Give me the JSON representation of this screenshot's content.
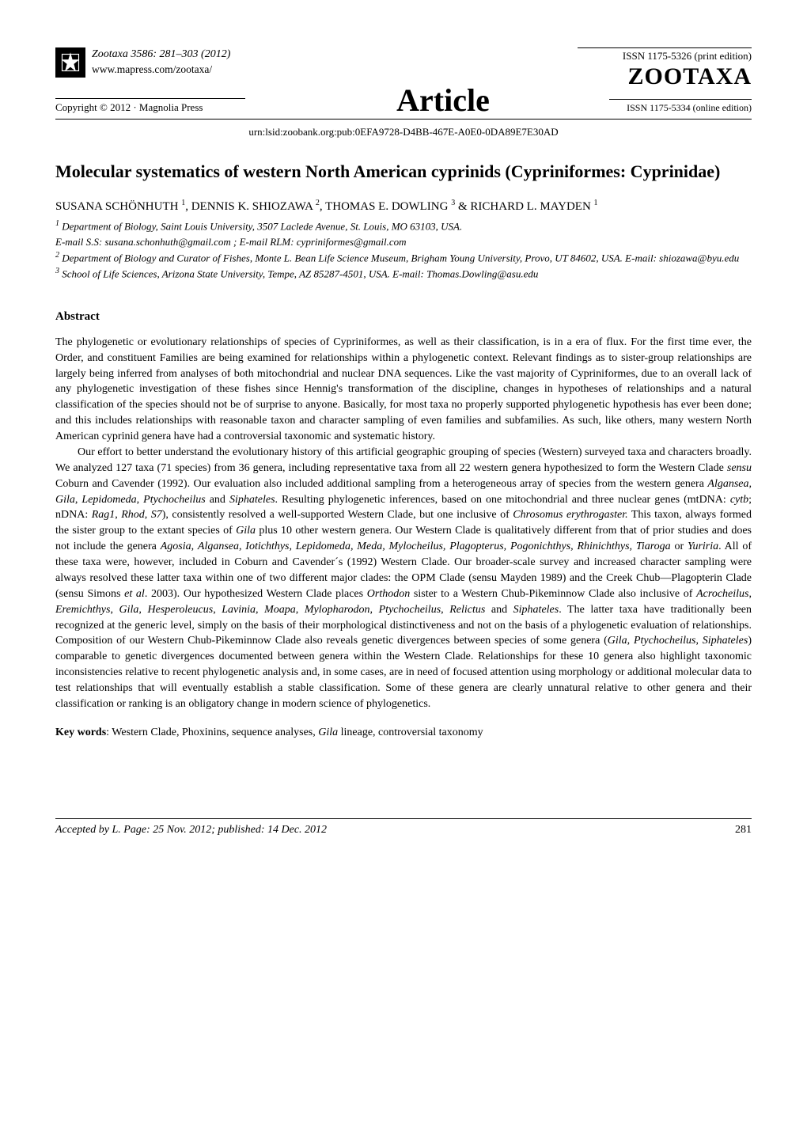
{
  "header": {
    "journal": "Zootaxa",
    "citation_range": "3586: 281–303 (2012)",
    "url": "www.mapress.com/zootaxa/",
    "copyright": "Copyright © 2012  ·  Magnolia Press",
    "article_label": "Article",
    "issn_print": "ISSN 1175-5326  (print edition)",
    "journal_logo_text": "ZOOTAXA",
    "issn_online": "ISSN 1175-5334 (online edition)"
  },
  "urn": "urn:lsid:zoobank.org:pub:0EFA9728-D4BB-467E-A0E0-0DA89E7E30AD",
  "title": "Molecular systematics of western North American cyprinids (Cypriniformes: Cyprinidae)",
  "authors_html": "SUSANA SCHÖNHUTH <span class=\"sup\">1</span>, DENNIS K. SHIOZAWA <span class=\"sup\">2</span>, THOMAS E. DOWLING <span class=\"sup\">3</span> & RICHARD L. MAYDEN <span class=\"sup\">1</span>",
  "affiliations": [
    "<span class=\"sup\">1</span> Department of Biology, Saint Louis University, 3507 Laclede Avenue, St. Louis, MO 63103, USA.",
    "E-mail S.S: susana.schonhuth@gmail.com ; E-mail RLM: cypriniformes@gmail.com",
    "<span class=\"sup\">2</span> Department of Biology and Curator of Fishes, Monte L. Bean Life Science Museum, Brigham Young University, Provo, UT 84602, USA. E-mail: shiozawa@byu.edu",
    "<span class=\"sup\">3</span> School of Life Sciences, Arizona State University, Tempe, AZ 85287-4501, USA. E-mail: Thomas.Dowling@asu.edu"
  ],
  "abstract_heading": "Abstract",
  "abstract_paragraphs": [
    "The phylogenetic or evolutionary relationships of species of Cypriniformes, as well as their classification, is in a era of flux.  For the first time ever, the Order, and constituent Families are being examined for relationships within a phylogenetic context.  Relevant findings as to sister-group relationships are largely being inferred from analyses of both mitochondrial and nuclear DNA sequences. Like the vast majority of Cypriniformes, due to an overall lack of any phylogenetic investigation of these fishes since Hennig's transformation of the discipline, changes in hypotheses of relationships and a natural classification of the species should not be of surprise to anyone. Basically, for most taxa no properly supported phylogenetic hypothesis has ever been done; and this includes relationships with reasonable taxon and character sampling of even families and subfamilies.  As such, like others, many western North American cyprinid genera have had a controversial taxonomic and systematic history.",
    "Our effort to better understand the evolutionary history of this artificial geographic grouping of species (Western) surveyed taxa and characters broadly.  We analyzed 127 taxa (71 species) from 36 genera, including representative taxa from all 22 western genera hypothesized to form the Western Clade <em>sensu</em> Coburn and Cavender (1992). Our evaluation also included additional sampling from a heterogeneous array of species from the western genera <em>Algansea, Gila</em>, <em>Lepidomeda</em>, <em>Ptychocheilus</em> and <em>Siphateles</em>. Resulting phylogenetic inferences, based on one mitochondrial and three nuclear genes (mtDNA: <em>cytb</em>; nDNA: <em>Rag1</em>, <em>Rhod</em>, <em>S7</em>), consistently resolved a well-supported Western Clade, but one inclusive of <em>Chrosomus erythrogaster.</em>  This taxon, always formed the sister group to the extant species of <em>Gila</em> plus 10 other western genera. Our Western Clade is qualitatively different from that of prior studies and does not include the genera <em>Agosia</em>, <em>Algansea</em>, <em>Iotichthys, Lepidomeda, Meda, Mylocheilus, Plagopterus, Pogonichthys, Rhinichthys, Tiaroga</em> or <em>Yuriria</em>. All of these taxa were, however, included in Coburn and Cavender´s (1992) Western Clade. Our broader-scale survey and increased character sampling were always resolved these latter taxa within one of two different major clades: the OPM Clade (sensu Mayden 1989) and the Creek Chub—Plagopterin Clade (sensu Simons <em>et al</em>. 2003). Our hypothesized Western Clade places <em>Orthodon</em> sister to a Western Chub-Pikeminnow Clade also inclusive of <em>Acrocheilus</em>, <em>Eremichthys</em>, <em>Gila, Hesperoleucus</em>, <em>Lavinia, Moapa</em>, <em>Mylopharodon, Ptychocheilus, Relictus</em> and <em>Siphateles</em>. The latter taxa have traditionally been recognized at the generic level, simply on the basis of their morphological distinctiveness and not on the basis of a phylogenetic evaluation of relationships. Composition of our Western Chub-Pikeminnow Clade also reveals genetic divergences between species of some genera (<em>Gila</em>, <em>Ptychocheilus</em>, <em>Siphateles</em>) comparable to genetic divergences documented between genera within the Western Clade. Relationships for these 10 genera also highlight taxonomic inconsistencies relative to recent phylogenetic analysis and, in some cases, are in need of focused attention using morphology or additional molecular data to test relationships that will eventually establish a stable classification. Some of these genera are clearly unnatural relative to other genera and their classification or ranking is an obligatory change in modern science of phylogenetics."
  ],
  "keywords_label": "Key words",
  "keywords_text": ": Western Clade, Phoxinins, sequence analyses, <em>Gila</em> lineage, controversial taxonomy",
  "footer": {
    "accepted": "Accepted by L. Page: 25 Nov. 2012; published: 14 Dec. 2012",
    "page_number": "281"
  },
  "colors": {
    "text": "#000000",
    "background": "#ffffff",
    "rule": "#000000"
  },
  "typography": {
    "title_fontsize": 22,
    "body_fontsize": 14,
    "author_fontsize": 15,
    "affil_fontsize": 13,
    "footer_fontsize": 14,
    "font_family": "Times New Roman"
  }
}
